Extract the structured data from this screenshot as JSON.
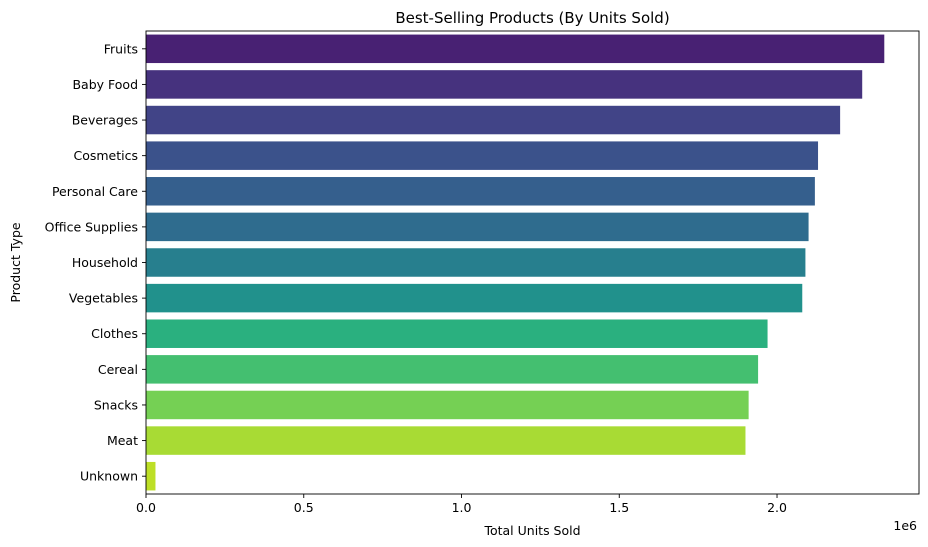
{
  "chart_data": {
    "type": "bar",
    "orientation": "horizontal",
    "title": "Best-Selling Products (By Units Sold)",
    "xlabel": "Total Units Sold",
    "ylabel": "Product Type",
    "x_scale_label": "1e6",
    "xlim": [
      0,
      2.45
    ],
    "x_ticks": [
      0,
      0.5,
      1.0,
      1.5,
      2.0
    ],
    "x_tick_labels": [
      "0.0",
      "0.5",
      "1.0",
      "1.5",
      "2.0"
    ],
    "grid": false,
    "legend": "none",
    "categories": [
      "Fruits",
      "Baby Food",
      "Beverages",
      "Cosmetics",
      "Personal Care",
      "Office Supplies",
      "Household",
      "Vegetables",
      "Clothes",
      "Cereal",
      "Snacks",
      "Meat",
      "Unknown"
    ],
    "values": [
      2.34,
      2.27,
      2.2,
      2.13,
      2.12,
      2.1,
      2.09,
      2.08,
      1.97,
      1.94,
      1.91,
      1.9,
      0.03
    ],
    "colors": [
      "#482173",
      "#46327e",
      "#414487",
      "#3b528b",
      "#355f8d",
      "#2f6c8e",
      "#277f8e",
      "#21918c",
      "#2ab07f",
      "#44bf70",
      "#75d054",
      "#a8db34",
      "#bddf26"
    ]
  }
}
